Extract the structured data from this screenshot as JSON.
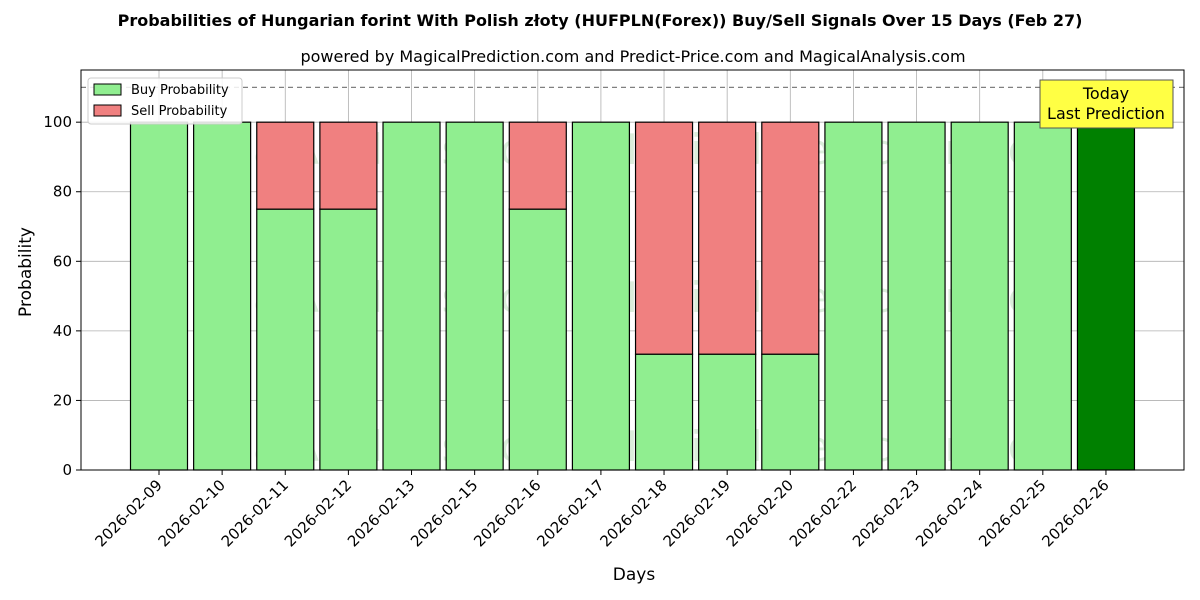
{
  "chart_data": {
    "type": "bar",
    "stacked": true,
    "title": "Probabilities of Hungarian forint With Polish złoty (HUFPLN(Forex)) Buy/Sell Signals Over 15 Days (Feb 27)",
    "subtitle": "powered by MagicalPrediction.com and Predict-Price.com and MagicalAnalysis.com",
    "xlabel": "Days",
    "ylabel": "Probability",
    "ylim": [
      0,
      115
    ],
    "yticks": [
      0,
      20,
      40,
      60,
      80,
      100
    ],
    "grid": true,
    "legend_position": "top-left",
    "reference_line": 110,
    "categories": [
      "2026-02-09",
      "2026-02-10",
      "2026-02-11",
      "2026-02-12",
      "2026-02-13",
      "2026-02-15",
      "2026-02-16",
      "2026-02-17",
      "2026-02-18",
      "2026-02-19",
      "2026-02-20",
      "2026-02-22",
      "2026-02-23",
      "2026-02-24",
      "2026-02-25",
      "2026-02-26"
    ],
    "series": [
      {
        "name": "Buy Probability",
        "color": "#90ee90",
        "values": [
          100,
          100,
          75,
          75,
          100,
          100,
          75,
          100,
          33.3,
          33.3,
          33.3,
          100,
          100,
          100,
          100,
          100
        ]
      },
      {
        "name": "Sell Probability",
        "color": "#f08080",
        "values": [
          0,
          0,
          25,
          25,
          0,
          0,
          25,
          0,
          66.7,
          66.7,
          66.7,
          0,
          0,
          0,
          0,
          0
        ]
      }
    ],
    "highlight": {
      "index": 15,
      "color": "#008000"
    },
    "annotation": {
      "lines": [
        "Today",
        "Last Prediction"
      ],
      "background": "#ffff44"
    },
    "watermarks": [
      "MagicalAnalysis.com",
      "MagicalPrediction.com"
    ]
  }
}
